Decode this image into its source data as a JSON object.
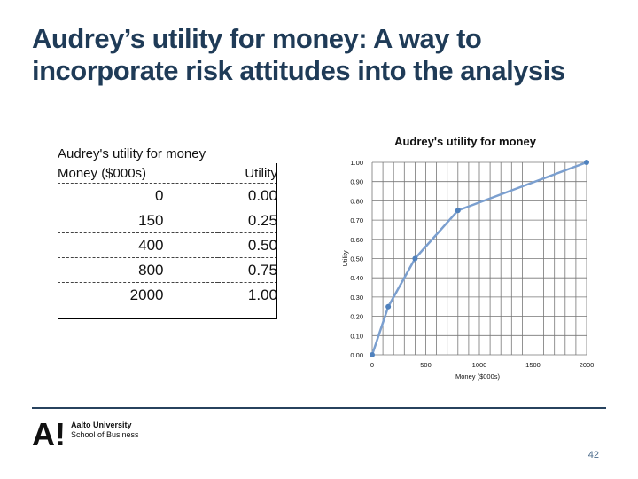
{
  "slide": {
    "title_line1": "Audrey’s utility for money: A way to",
    "title_line2": "incorporate risk attitudes into the analysis",
    "page_number": "42"
  },
  "table": {
    "caption": "Audrey's utility for money",
    "col_money": "Money ($000s)",
    "col_utility": "Utility",
    "rows": [
      {
        "money": "0",
        "utility": "0.00"
      },
      {
        "money": "150",
        "utility": "0.25"
      },
      {
        "money": "400",
        "utility": "0.50"
      },
      {
        "money": "800",
        "utility": "0.75"
      },
      {
        "money": "2000",
        "utility": "1.00"
      }
    ]
  },
  "chart_data": {
    "type": "line",
    "title": "Audrey's utility for money",
    "xlabel": "Money ($000s)",
    "ylabel": "Utility",
    "xlim": [
      0,
      2000
    ],
    "ylim": [
      0,
      1
    ],
    "x_ticks": [
      "0",
      "500",
      "1000",
      "1500",
      "2000"
    ],
    "y_ticks": [
      "0.00",
      "0.10",
      "0.20",
      "0.30",
      "0.40",
      "0.50",
      "0.60",
      "0.70",
      "0.80",
      "0.90",
      "1.00"
    ],
    "grid": true,
    "marker_color": "#4f81bd",
    "line_color": "#7b9fcf",
    "series": [
      {
        "x": [
          0,
          150,
          400,
          800,
          2000
        ],
        "y": [
          0.0,
          0.25,
          0.5,
          0.75,
          1.0
        ]
      }
    ]
  },
  "footer": {
    "logo_mark": "A!",
    "logo_line1": "Aalto University",
    "logo_line2": "School of Business"
  }
}
